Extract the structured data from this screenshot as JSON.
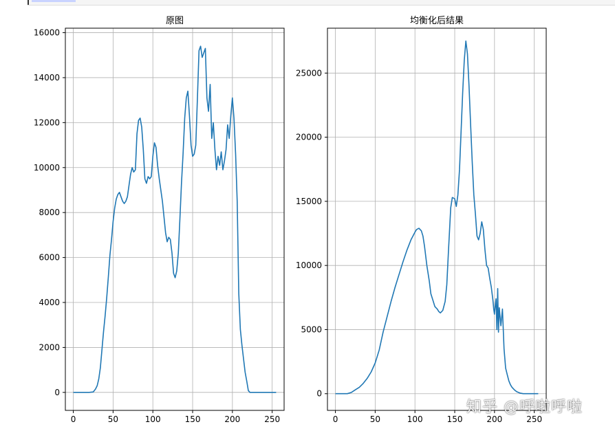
{
  "watermark": "知乎 @呼啦呼啦",
  "colors": {
    "line": "#1f77b4",
    "grid": "#b0b0b0",
    "axis": "#000000"
  },
  "chart_data": [
    {
      "type": "line",
      "title": "原图",
      "xlabel": "",
      "ylabel": "",
      "xlim": [
        -10,
        265
      ],
      "ylim": [
        -800,
        16200
      ],
      "xticks": [
        0,
        50,
        100,
        150,
        200,
        250
      ],
      "yticks": [
        0,
        2000,
        4000,
        6000,
        8000,
        10000,
        12000,
        14000,
        16000
      ],
      "grid": true,
      "series": [
        {
          "x": [
            0,
            10,
            20,
            25,
            28,
            30,
            32,
            34,
            36,
            38,
            40,
            42,
            44,
            46,
            48,
            50,
            52,
            54,
            56,
            58,
            60,
            62,
            64,
            66,
            68,
            70,
            72,
            74,
            76,
            78,
            80,
            82,
            84,
            86,
            88,
            90,
            92,
            94,
            96,
            98,
            100,
            102,
            104,
            106,
            108,
            110,
            112,
            114,
            116,
            118,
            120,
            122,
            124,
            126,
            128,
            130,
            132,
            134,
            136,
            138,
            140,
            142,
            144,
            146,
            148,
            150,
            152,
            154,
            156,
            158,
            160,
            162,
            164,
            166,
            168,
            170,
            172,
            174,
            176,
            178,
            180,
            182,
            184,
            186,
            188,
            190,
            192,
            194,
            196,
            198,
            200,
            202,
            204,
            206,
            208,
            210,
            212,
            214,
            216,
            218,
            220,
            222,
            224,
            226,
            228,
            230,
            240,
            255
          ],
          "y": [
            0,
            0,
            0,
            20,
            150,
            300,
            600,
            1100,
            1900,
            2700,
            3400,
            4200,
            5100,
            6100,
            6800,
            7600,
            8200,
            8600,
            8800,
            8900,
            8700,
            8500,
            8400,
            8500,
            8700,
            9200,
            9700,
            10000,
            9800,
            9900,
            11500,
            12100,
            12200,
            11800,
            10800,
            9500,
            9300,
            9600,
            9500,
            9600,
            10500,
            11100,
            10900,
            10100,
            9500,
            9000,
            8500,
            7800,
            7100,
            6700,
            6900,
            6800,
            6200,
            5300,
            5100,
            5400,
            6200,
            7700,
            9300,
            10600,
            12200,
            13100,
            13400,
            12300,
            11000,
            10500,
            10600,
            11000,
            13100,
            15200,
            15400,
            14900,
            15100,
            15300,
            13100,
            12500,
            13700,
            11300,
            12000,
            10800,
            9900,
            10500,
            10100,
            10700,
            9900,
            10300,
            10800,
            11900,
            11300,
            12300,
            13100,
            12200,
            10600,
            8500,
            4400,
            2800,
            2100,
            1500,
            900,
            500,
            80,
            0,
            0,
            0,
            0,
            0,
            0,
            0
          ]
        }
      ]
    },
    {
      "type": "line",
      "title": "均衡化后结果",
      "xlabel": "",
      "ylabel": "",
      "xlim": [
        -10,
        265
      ],
      "ylim": [
        -1300,
        28500
      ],
      "xticks": [
        0,
        50,
        100,
        150,
        200,
        250
      ],
      "yticks": [
        0,
        5000,
        10000,
        15000,
        20000,
        25000
      ],
      "grid": true,
      "series": [
        {
          "x": [
            0,
            10,
            15,
            20,
            25,
            30,
            35,
            40,
            45,
            50,
            55,
            60,
            65,
            70,
            75,
            80,
            85,
            90,
            95,
            100,
            102,
            105,
            108,
            110,
            112,
            115,
            118,
            120,
            123,
            125,
            128,
            130,
            132,
            135,
            138,
            140,
            142,
            145,
            147,
            150,
            152,
            154,
            156,
            158,
            160,
            162,
            164,
            166,
            168,
            170,
            172,
            174,
            176,
            178,
            180,
            182,
            184,
            186,
            188,
            190,
            192,
            194,
            196,
            198,
            199,
            200,
            201,
            202,
            203,
            204,
            205,
            206,
            208,
            210,
            212,
            214,
            216,
            218,
            220,
            222,
            225,
            228,
            232,
            236,
            240,
            245,
            255
          ],
          "y": [
            0,
            0,
            0,
            100,
            300,
            500,
            800,
            1200,
            1700,
            2400,
            3400,
            4800,
            6000,
            7200,
            8300,
            9300,
            10300,
            11200,
            12000,
            12600,
            12800,
            12900,
            12700,
            12300,
            11500,
            10000,
            8800,
            7800,
            7200,
            6800,
            6600,
            6400,
            6300,
            6500,
            7200,
            8500,
            11000,
            14500,
            15300,
            15200,
            14600,
            15500,
            17500,
            20500,
            23500,
            26000,
            27500,
            26500,
            24000,
            21000,
            18000,
            15500,
            14000,
            12300,
            12000,
            12500,
            13400,
            12800,
            11200,
            10000,
            9800,
            9000,
            8300,
            7300,
            6600,
            6200,
            6900,
            7400,
            5000,
            8200,
            4800,
            6700,
            5300,
            6600,
            3500,
            2000,
            1500,
            1000,
            700,
            500,
            300,
            150,
            50,
            0,
            0,
            0,
            0
          ]
        }
      ]
    }
  ]
}
